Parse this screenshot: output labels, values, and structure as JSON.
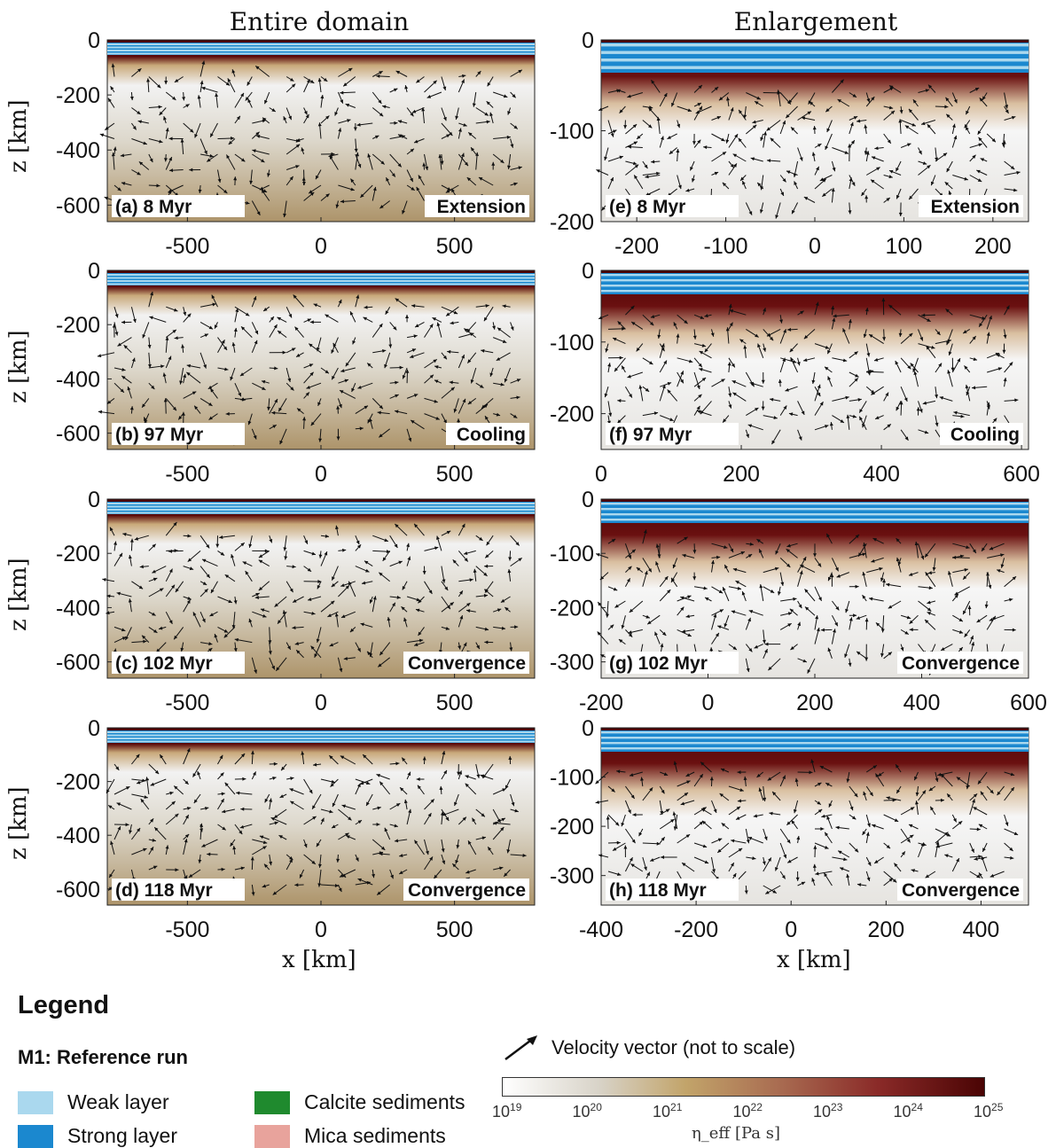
{
  "columns": {
    "left_title": "Entire domain",
    "right_title": "Enlargement"
  },
  "axis_labels": {
    "y": "z [km]",
    "x": "x [km]"
  },
  "panels": [
    {
      "id": "a",
      "label": "(a) 8 Myr",
      "phase": "Extension",
      "yticks": [
        "0",
        "-200",
        "-400",
        "-600"
      ],
      "xticks": [
        "-500",
        "0",
        "500"
      ],
      "xmin": -800,
      "xmax": 800,
      "ymin": -660,
      "ymax": 0
    },
    {
      "id": "e",
      "label": "(e) 8 Myr",
      "phase": "Extension",
      "yticks": [
        "0",
        "-100",
        "-200"
      ],
      "xticks": [
        "-200",
        "-100",
        "0",
        "100",
        "200"
      ],
      "xmin": -240,
      "xmax": 240,
      "ymin": -200,
      "ymax": 0
    },
    {
      "id": "b",
      "label": "(b) 97 Myr",
      "phase": "Cooling",
      "yticks": [
        "0",
        "-200",
        "-400",
        "-600"
      ],
      "xticks": [
        "-500",
        "0",
        "500"
      ],
      "xmin": -800,
      "xmax": 800,
      "ymin": -660,
      "ymax": 0
    },
    {
      "id": "f",
      "label": "(f) 97 Myr",
      "phase": "Cooling",
      "yticks": [
        "0",
        "-100",
        "-200"
      ],
      "xticks": [
        "0",
        "200",
        "400",
        "600"
      ],
      "xmin": 0,
      "xmax": 610,
      "ymin": -250,
      "ymax": 0
    },
    {
      "id": "c",
      "label": "(c) 102 Myr",
      "phase": "Convergence",
      "yticks": [
        "0",
        "-200",
        "-400",
        "-600"
      ],
      "xticks": [
        "-500",
        "0",
        "500"
      ],
      "xmin": -800,
      "xmax": 800,
      "ymin": -660,
      "ymax": 0
    },
    {
      "id": "g",
      "label": "(g) 102 Myr",
      "phase": "Convergence",
      "yticks": [
        "0",
        "-100",
        "-200",
        "-300"
      ],
      "xticks": [
        "-200",
        "0",
        "200",
        "400",
        "600"
      ],
      "xmin": -200,
      "xmax": 600,
      "ymin": -330,
      "ymax": 0
    },
    {
      "id": "d",
      "label": "(d) 118 Myr",
      "phase": "Convergence",
      "yticks": [
        "0",
        "-200",
        "-400",
        "-600"
      ],
      "xticks": [
        "-500",
        "0",
        "500"
      ],
      "xmin": -800,
      "xmax": 800,
      "ymin": -660,
      "ymax": 0
    },
    {
      "id": "h",
      "label": "(h) 118 Myr",
      "phase": "Convergence",
      "yticks": [
        "0",
        "-100",
        "-200",
        "-300"
      ],
      "xticks": [
        "-400",
        "-200",
        "0",
        "200",
        "400"
      ],
      "xmin": -400,
      "xmax": 500,
      "ymin": -360,
      "ymax": 0
    }
  ],
  "legend": {
    "title": "Legend",
    "run": "M1: Reference run",
    "items": [
      {
        "label": "Weak layer",
        "color": "#aad8ee"
      },
      {
        "label": "Strong layer",
        "color": "#1b88cf"
      },
      {
        "label": "Calcite sediments",
        "color": "#1f8a2e"
      },
      {
        "label": "Mica sediments",
        "color": "#e8a39c"
      }
    ],
    "velocity": "Velocity vector (not to scale)",
    "colorbar_label": "η_eff [Pa s]",
    "colorbar_ticks": [
      "19",
      "20",
      "21",
      "22",
      "23",
      "24",
      "25"
    ]
  }
}
